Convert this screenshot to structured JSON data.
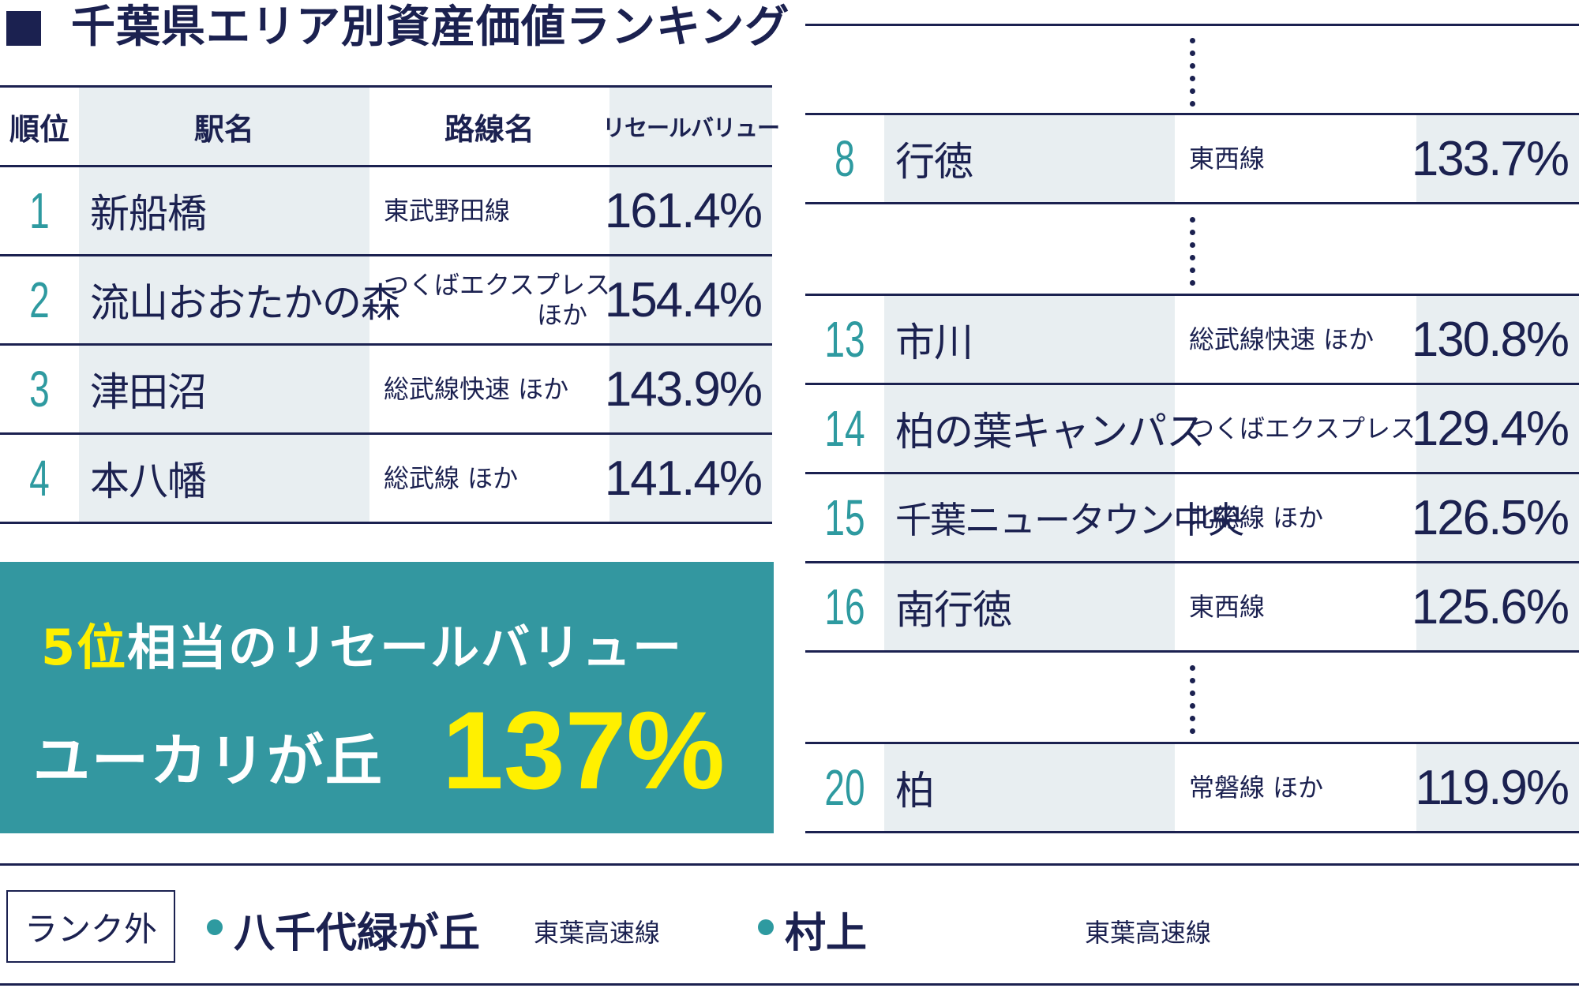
{
  "title": "千葉県エリア別資産価値ランキング",
  "headers": {
    "rank": "順位",
    "station": "駅名",
    "line": "路線名",
    "value": "リセールバリュー"
  },
  "left_rows": [
    {
      "rank": "1",
      "station": "新船橋",
      "line1": "東武野田線",
      "line2": "",
      "value": "161.4%"
    },
    {
      "rank": "2",
      "station": "流山おおたかの森",
      "line1": "つくばエクスプレス",
      "line2": "ほか",
      "value": "154.4%"
    },
    {
      "rank": "3",
      "station": "津田沼",
      "line1": "総武線快速 ほか",
      "line2": "",
      "value": "143.9%"
    },
    {
      "rank": "4",
      "station": "本八幡",
      "line1": "総武線 ほか",
      "line2": "",
      "value": "141.4%"
    }
  ],
  "right_rows": [
    {
      "rank": "8",
      "station": "行徳",
      "line1": "東西線",
      "value": "133.7%"
    },
    {
      "rank": "13",
      "station": "市川",
      "line1": "総武線快速 ほか",
      "value": "130.8%"
    },
    {
      "rank": "14",
      "station": "柏の葉キャンパス",
      "line1": "つくばエクスプレス",
      "value": "129.4%"
    },
    {
      "rank": "15",
      "station": "千葉ニュータウン中央",
      "line1": "北総線 ほか",
      "value": "126.5%"
    },
    {
      "rank": "16",
      "station": "南行徳",
      "line1": "東西線",
      "value": "125.6%"
    },
    {
      "rank": "20",
      "station": "柏",
      "line1": "常磐線 ほか",
      "value": "119.9%"
    }
  ],
  "highlight": {
    "rank_text": "5位",
    "caption": "相当のリセールバリュー",
    "station": "ユーカリが丘",
    "value": "137%"
  },
  "footer": {
    "badge": "ランク外",
    "items": [
      {
        "station": "八千代緑が丘",
        "line": "東葉高速線"
      },
      {
        "station": "村上",
        "line": "東葉高速線"
      }
    ]
  },
  "colors": {
    "navy": "#1b2150",
    "teal": "#2e9aa0",
    "highlight_bg": "#3397a0",
    "highlight_text": "#fff000",
    "row_shade": "#e8eef1"
  }
}
